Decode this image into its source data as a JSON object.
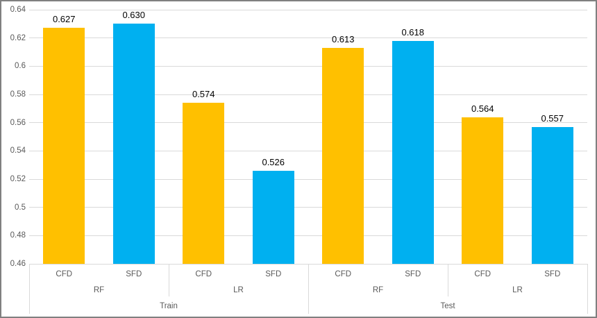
{
  "chart_data": {
    "type": "bar",
    "title": "",
    "legend": "none",
    "grid": true,
    "ylim": [
      0.46,
      0.64
    ],
    "y_ticks": [
      "0.64",
      "0.62",
      "0.6",
      "0.58",
      "0.56",
      "0.54",
      "0.52",
      "0.5",
      "0.48",
      "0.46"
    ],
    "x_axis_levels": {
      "level1_per_bar": [
        "CFD",
        "SFD",
        "CFD",
        "SFD",
        "CFD",
        "SFD",
        "CFD",
        "SFD"
      ],
      "level2_per_pair": [
        "RF",
        "LR",
        "RF",
        "LR"
      ],
      "level3_per_half": [
        "Train",
        "Test"
      ]
    },
    "values": [
      0.627,
      0.63,
      0.574,
      0.526,
      0.613,
      0.618,
      0.564,
      0.557
    ],
    "data_labels": [
      "0.627",
      "0.630",
      "0.574",
      "0.526",
      "0.613",
      "0.618",
      "0.564",
      "0.557"
    ],
    "series_colors": {
      "CFD": "#FFC000",
      "SFD": "#00B0F0"
    }
  },
  "colors": {
    "gridline": "#d9d9d9",
    "axis_text": "#595959",
    "data_label_text": "#000000",
    "border": "#808080",
    "background": "#ffffff"
  }
}
